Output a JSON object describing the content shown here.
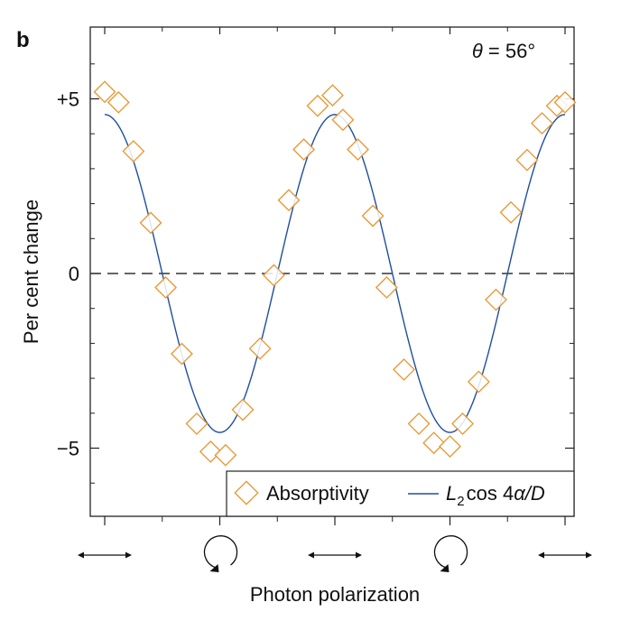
{
  "panel_label": "b",
  "colors": {
    "marker": "#e8952e",
    "fit_line": "#1f4fa0",
    "axis": "#222222",
    "zero_line": "#333333"
  },
  "chart_data": {
    "type": "scatter",
    "title": "",
    "annotation": {
      "theta": "θ",
      "eq": " = 56°"
    },
    "xlabel": "Photon polarization",
    "ylabel": "Per cent change",
    "xlim": [
      -0.1,
      4.1
    ],
    "ylim": [
      -7,
      7
    ],
    "grid": false,
    "zero_line": true,
    "yticks": [
      {
        "value": 5,
        "label": "+5"
      },
      {
        "value": 0,
        "label": "0"
      },
      {
        "value": -5,
        "label": "−5"
      }
    ],
    "y_minor_ticks": [
      -6,
      -4,
      -3,
      -2,
      -1,
      1,
      2,
      3,
      4,
      6
    ],
    "x_major_ticks": [
      0,
      1,
      2,
      3,
      4
    ],
    "x_minor_ticks": [
      0.5,
      1.5,
      2.5,
      3.5
    ],
    "x_tick_symbols": [
      {
        "x": 0,
        "symbol": "linear-horizontal"
      },
      {
        "x": 1,
        "symbol": "circular"
      },
      {
        "x": 2,
        "symbol": "linear-horizontal"
      },
      {
        "x": 3,
        "symbol": "circular"
      },
      {
        "x": 4,
        "symbol": "linear-horizontal"
      }
    ],
    "legend": {
      "placement": "bottom-right",
      "items": [
        {
          "label": "Absorptivity",
          "kind": "marker"
        },
        {
          "label_L": "L",
          "label_sub": "2",
          "label_rest": "cos 4",
          "label_alpha": "α",
          "label_D": "/D",
          "kind": "line"
        }
      ]
    },
    "series": [
      {
        "name": "Absorptivity",
        "marker": "diamond",
        "x": [
          0.0,
          0.12,
          0.25,
          0.4,
          0.53,
          0.67,
          0.8,
          0.92,
          1.05,
          1.2,
          1.35,
          1.47,
          1.6,
          1.73,
          1.85,
          1.98,
          2.07,
          2.2,
          2.33,
          2.45,
          2.6,
          2.73,
          2.86,
          3.0,
          3.11,
          3.25,
          3.4,
          3.53,
          3.67,
          3.8,
          3.93,
          4.0
        ],
        "y": [
          5.2,
          4.9,
          3.5,
          1.45,
          -0.4,
          -2.3,
          -4.3,
          -5.1,
          -5.2,
          -3.9,
          -2.15,
          -0.05,
          2.1,
          3.55,
          4.8,
          5.1,
          4.4,
          3.55,
          1.65,
          -0.4,
          -2.75,
          -4.3,
          -4.85,
          -4.95,
          -4.3,
          -3.1,
          -0.75,
          1.75,
          3.25,
          4.3,
          4.8,
          4.9
        ]
      },
      {
        "name": "L2cos 4α/D",
        "type": "line",
        "amplitude": 4.55,
        "form": "amplitude*cos(2*pi*x/2)"
      }
    ]
  }
}
